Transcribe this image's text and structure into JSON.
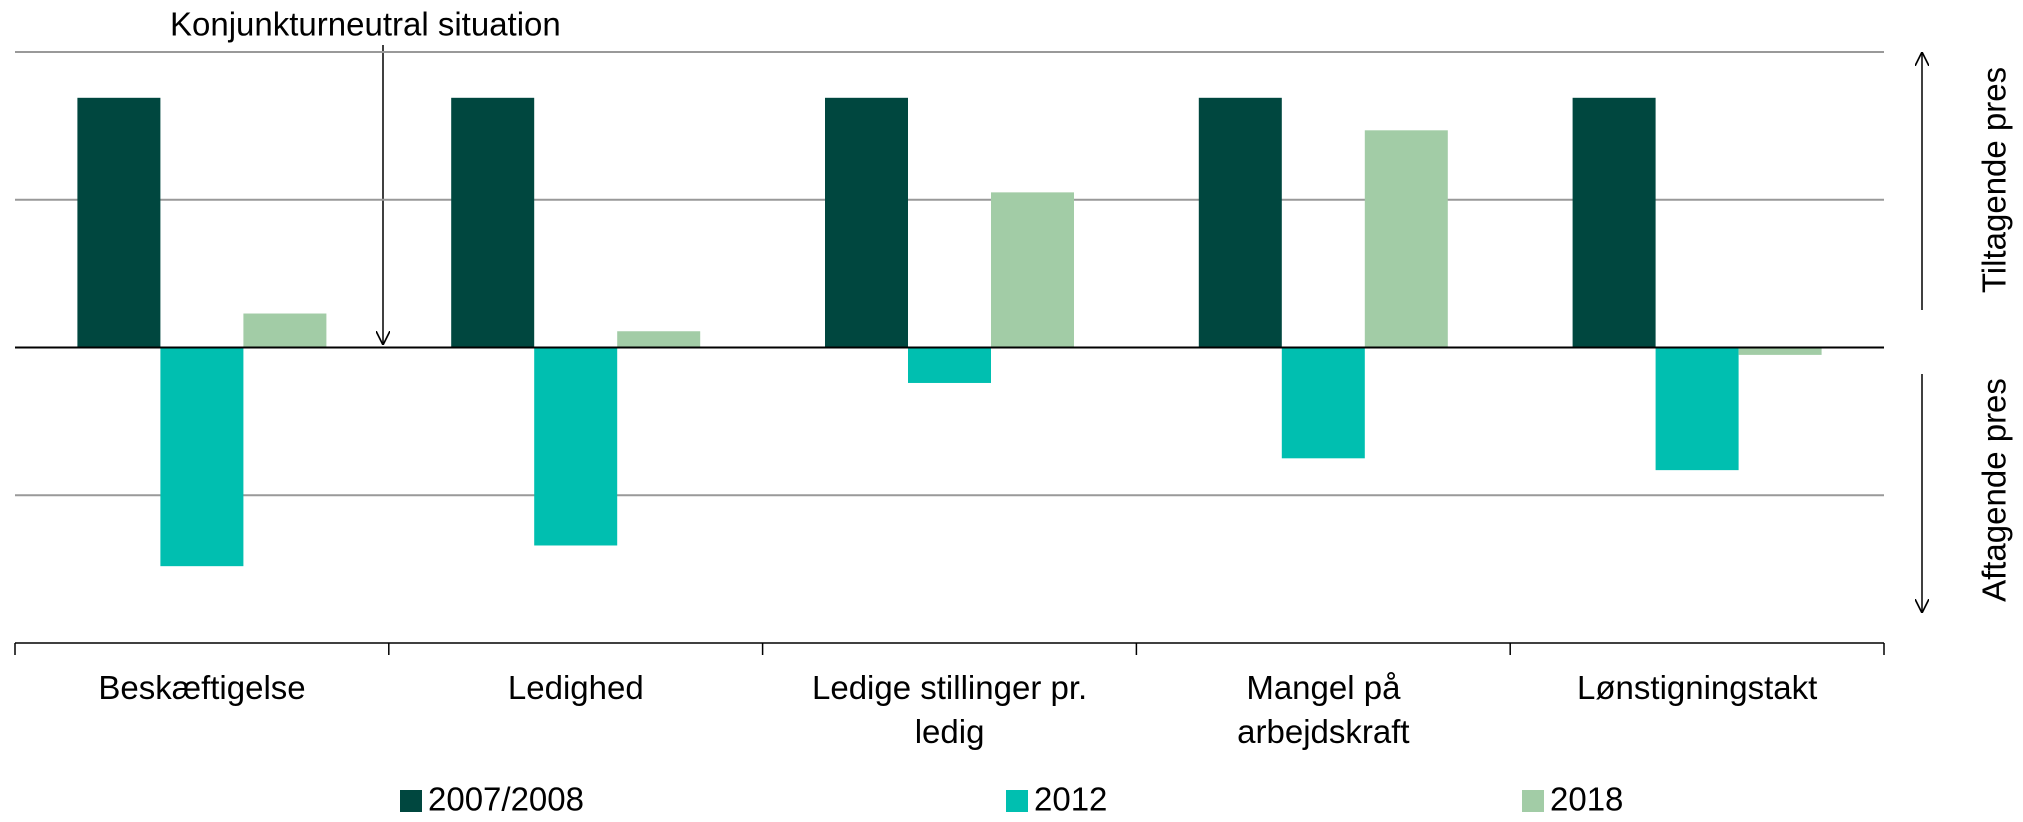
{
  "chart_data": {
    "type": "bar",
    "annotation": "Konjunkturneutral situation",
    "right_label_up": "Tiltagende pres",
    "right_label_down": "Aftagende pres",
    "categories": [
      "Beskæftigelse",
      "Ledighed",
      "Ledige stillinger pr.\nledig",
      "Mangel på\narbejdskraft",
      "Lønstigningstakt"
    ],
    "series": [
      {
        "name": "2007/2008",
        "color": "#00473f",
        "values": [
          1.69,
          1.69,
          1.69,
          1.69,
          1.69
        ]
      },
      {
        "name": "2012",
        "color": "#00bfb0",
        "values": [
          -1.48,
          -1.34,
          -0.24,
          -0.75,
          -0.83
        ]
      },
      {
        "name": "2018",
        "color": "#a2cca6",
        "values": [
          0.23,
          0.11,
          1.05,
          1.47,
          -0.05
        ]
      }
    ],
    "ylim": [
      -2,
      2
    ],
    "yticks": [
      -2,
      -1,
      0,
      1,
      2
    ],
    "grid": true
  }
}
